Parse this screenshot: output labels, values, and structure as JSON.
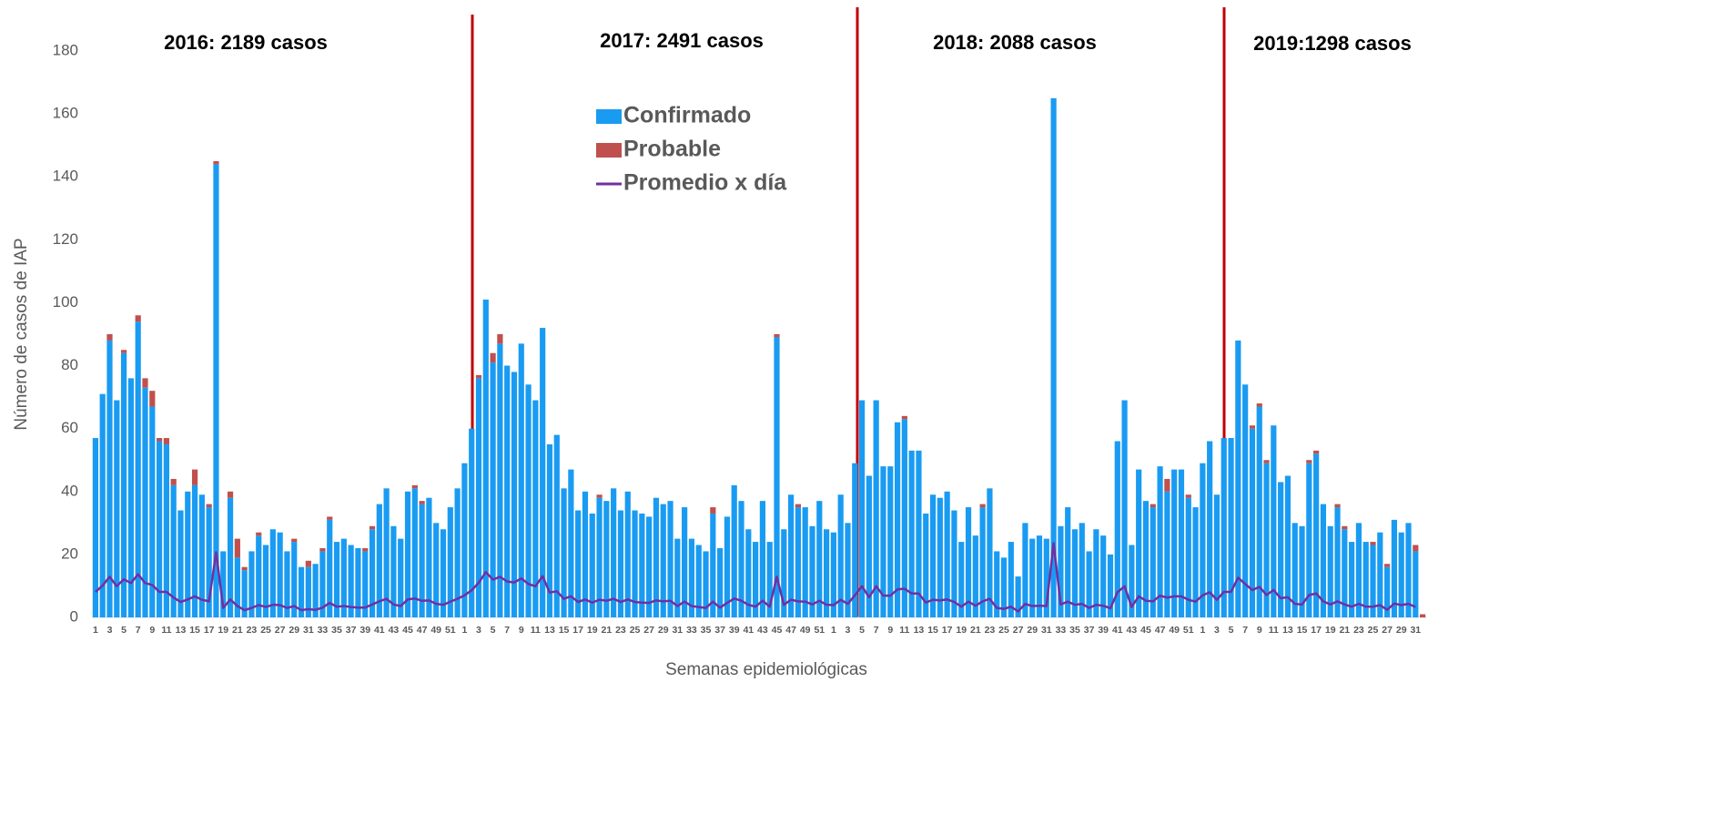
{
  "chart_data": {
    "type": "bar",
    "stacked": true,
    "y_label": "Número de casos  de IAP",
    "x_label": "Semanas  epidemiológicas",
    "annotations": [
      "2016: 2189 casos",
      "2017: 2491 casos",
      "2018: 2088 casos",
      "2019:1298 casos"
    ],
    "ylim": [
      0,
      180
    ],
    "yticks": [
      0,
      20,
      40,
      60,
      80,
      100,
      120,
      140,
      160,
      180
    ],
    "categories": [
      "1",
      null,
      "3",
      null,
      "5",
      null,
      "7",
      null,
      "9",
      null,
      "11",
      null,
      "13",
      null,
      "15",
      null,
      "17",
      null,
      "19",
      null,
      "21",
      null,
      "23",
      null,
      "25",
      null,
      "27",
      null,
      "29",
      null,
      "31",
      null,
      "33",
      null,
      "35",
      null,
      "37",
      null,
      "39",
      null,
      "41",
      null,
      "43",
      null,
      "45",
      null,
      "47",
      null,
      "49",
      null,
      "51",
      null,
      "1",
      null,
      "3",
      null,
      "5",
      null,
      "7",
      null,
      "9",
      null,
      "11",
      null,
      "13",
      null,
      "15",
      null,
      "17",
      null,
      "19",
      null,
      "21",
      null,
      "23",
      null,
      "25",
      null,
      "27",
      null,
      "29",
      null,
      "31",
      null,
      "33",
      null,
      "35",
      null,
      "37",
      null,
      "39",
      null,
      "41",
      null,
      "43",
      null,
      "45",
      null,
      "47",
      null,
      "49",
      null,
      "51",
      null,
      "1",
      null,
      "3",
      null,
      "5",
      null,
      "7",
      null,
      "9",
      null,
      "11",
      null,
      "13",
      null,
      "15",
      null,
      "17",
      null,
      "19",
      null,
      "21",
      null,
      "23",
      null,
      "25",
      null,
      "27",
      null,
      "29",
      null,
      "31",
      null,
      "33",
      null,
      "35",
      null,
      "37",
      null,
      "39",
      null,
      "41",
      null,
      "43",
      null,
      "45",
      null,
      "47",
      null,
      "49",
      null,
      "51",
      null,
      "1",
      null,
      "3",
      null,
      "5",
      null,
      "7",
      null,
      "9",
      null,
      "11",
      null,
      "13",
      null,
      "15",
      null,
      "17",
      null,
      "19",
      null,
      "21",
      null,
      "23",
      null,
      "25",
      null,
      "27",
      null,
      "29",
      null,
      "31",
      null
    ],
    "series": [
      {
        "name": "Confirmado",
        "color": "#1a9bf2",
        "type": "bar",
        "values": [
          57,
          71,
          88,
          69,
          84,
          76,
          94,
          73,
          67,
          56,
          55,
          42,
          34,
          40,
          42,
          39,
          35,
          144,
          21,
          38,
          19,
          15,
          21,
          26,
          23,
          28,
          27,
          21,
          24,
          16,
          16,
          17,
          21,
          31,
          24,
          25,
          23,
          22,
          21,
          28,
          36,
          41,
          29,
          25,
          40,
          41,
          36,
          38,
          30,
          28,
          35,
          41,
          49,
          60,
          76,
          101,
          81,
          87,
          80,
          78,
          87,
          74,
          69,
          92,
          55,
          58,
          41,
          47,
          34,
          40,
          33,
          38,
          37,
          41,
          34,
          40,
          34,
          33,
          32,
          38,
          36,
          37,
          25,
          35,
          25,
          23,
          21,
          33,
          22,
          32,
          42,
          37,
          28,
          24,
          37,
          24,
          89,
          28,
          39,
          35,
          35,
          29,
          37,
          28,
          27,
          39,
          30,
          49,
          69,
          45,
          69,
          48,
          48,
          62,
          63,
          53,
          53,
          33,
          39,
          38,
          40,
          34,
          24,
          35,
          26,
          35,
          41,
          21,
          19,
          24,
          13,
          30,
          25,
          26,
          25,
          165,
          29,
          35,
          28,
          30,
          21,
          28,
          26,
          20,
          56,
          69,
          23,
          47,
          37,
          35,
          48,
          40,
          47,
          47,
          38,
          35,
          49,
          56,
          39,
          57,
          57,
          88,
          74,
          60,
          67,
          49,
          61,
          43,
          45,
          30,
          29,
          49,
          52,
          36,
          29,
          35,
          28,
          24,
          30,
          24,
          23,
          27,
          16,
          31,
          27,
          30,
          21,
          0
        ]
      },
      {
        "name": "Probable",
        "color": "#c0504d",
        "type": "bar",
        "values": [
          0,
          0,
          2,
          0,
          1,
          0,
          2,
          3,
          5,
          1,
          2,
          2,
          0,
          0,
          5,
          0,
          1,
          1,
          0,
          2,
          6,
          1,
          0,
          1,
          0,
          0,
          0,
          0,
          1,
          0,
          2,
          0,
          1,
          1,
          0,
          0,
          0,
          0,
          1,
          1,
          0,
          0,
          0,
          0,
          0,
          1,
          1,
          0,
          0,
          0,
          0,
          0,
          0,
          0,
          1,
          0,
          3,
          3,
          0,
          0,
          0,
          0,
          0,
          0,
          0,
          0,
          0,
          0,
          0,
          0,
          0,
          1,
          0,
          0,
          0,
          0,
          0,
          0,
          0,
          0,
          0,
          0,
          0,
          0,
          0,
          0,
          0,
          2,
          0,
          0,
          0,
          0,
          0,
          0,
          0,
          0,
          1,
          0,
          0,
          1,
          0,
          0,
          0,
          0,
          0,
          0,
          0,
          0,
          0,
          0,
          0,
          0,
          0,
          0,
          1,
          0,
          0,
          0,
          0,
          0,
          0,
          0,
          0,
          0,
          0,
          1,
          0,
          0,
          0,
          0,
          0,
          0,
          0,
          0,
          0,
          0,
          0,
          0,
          0,
          0,
          0,
          0,
          0,
          0,
          0,
          0,
          0,
          0,
          0,
          1,
          0,
          4,
          0,
          0,
          1,
          0,
          0,
          0,
          0,
          0,
          0,
          0,
          0,
          1,
          1,
          1,
          0,
          0,
          0,
          0,
          0,
          1,
          1,
          0,
          0,
          1,
          1,
          0,
          0,
          0,
          1,
          0,
          1,
          0,
          0,
          0,
          2,
          1
        ]
      },
      {
        "name": "Promedio x día",
        "color": "#7030a0",
        "type": "line",
        "values": [
          8.1,
          10.1,
          12.9,
          9.9,
          12.1,
          10.9,
          13.7,
          10.9,
          10.3,
          8.1,
          8.1,
          6.3,
          4.9,
          5.7,
          6.7,
          5.6,
          5.1,
          20.7,
          3,
          5.7,
          3.6,
          2.3,
          3,
          3.9,
          3.3,
          4,
          3.9,
          3,
          3.6,
          2.3,
          2.6,
          2.4,
          3.1,
          4.6,
          3.4,
          3.6,
          3.3,
          3.1,
          3.1,
          4.1,
          5.1,
          5.9,
          4.1,
          3.6,
          5.7,
          6,
          5.3,
          5.4,
          4.3,
          4,
          5,
          5.9,
          7,
          8.6,
          11,
          14.4,
          12,
          12.9,
          11.4,
          11.1,
          12.4,
          10.6,
          9.9,
          13.1,
          7.9,
          8.3,
          5.9,
          6.7,
          4.9,
          5.7,
          4.7,
          5.6,
          5.3,
          5.9,
          4.9,
          5.7,
          4.9,
          4.7,
          4.6,
          5.4,
          5.1,
          5.3,
          3.6,
          5,
          3.6,
          3.3,
          3,
          5,
          3.1,
          4.6,
          6,
          5.3,
          4,
          3.4,
          5.3,
          3.4,
          12.9,
          4,
          5.6,
          5.1,
          5,
          4.1,
          5.3,
          4,
          3.9,
          5.6,
          4.3,
          7,
          9.9,
          6.4,
          9.9,
          6.9,
          6.9,
          8.9,
          9.1,
          7.6,
          7.6,
          4.7,
          5.6,
          5.4,
          5.7,
          4.9,
          3.4,
          5,
          3.7,
          5.1,
          5.9,
          3,
          2.7,
          3.4,
          1.9,
          4.3,
          3.6,
          3.7,
          3.6,
          23.6,
          4.1,
          5,
          4,
          4.3,
          3,
          4,
          3.7,
          2.9,
          8,
          9.9,
          3.3,
          6.7,
          5.3,
          5.1,
          6.9,
          6.3,
          6.7,
          6.7,
          5.6,
          5,
          7,
          8,
          5.6,
          8.1,
          8.1,
          12.6,
          10.6,
          8.7,
          9.7,
          7.1,
          8.7,
          6.1,
          6.4,
          4.3,
          4.1,
          7.1,
          7.6,
          5.1,
          4.1,
          5.1,
          4.1,
          3.4,
          4.3,
          3.4,
          3.4,
          3.9,
          2.4,
          4.4,
          3.9,
          4.3,
          3.3,
          null
        ]
      }
    ]
  }
}
